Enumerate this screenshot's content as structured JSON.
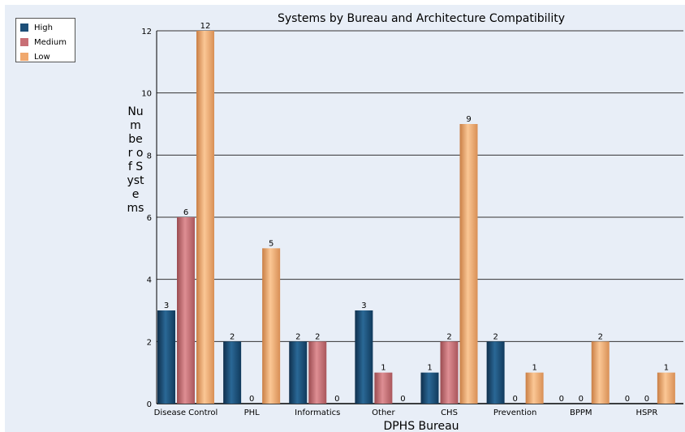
{
  "chart_data": {
    "type": "bar",
    "title": "Systems by Bureau and Architecture Compatibility",
    "xlabel": "DPHS Bureau",
    "ylabel": "Number of Systems",
    "ylim": [
      0,
      12
    ],
    "yticks": [
      0,
      2,
      4,
      6,
      8,
      10,
      12
    ],
    "grid": true,
    "legend_position": "top-left",
    "categories": [
      "Disease Control",
      "PHL",
      "Informatics",
      "Other",
      "CHS",
      "Prevention",
      "BPPM",
      "HSPR"
    ],
    "series": [
      {
        "name": "High",
        "color": "#1d4f78",
        "values": [
          3,
          2,
          2,
          3,
          1,
          2,
          0,
          0
        ]
      },
      {
        "name": "Medium",
        "color": "#c86f75",
        "values": [
          6,
          0,
          2,
          1,
          2,
          0,
          0,
          0
        ]
      },
      {
        "name": "Low",
        "color": "#f0a86e",
        "values": [
          12,
          5,
          0,
          0,
          9,
          1,
          2,
          1
        ]
      }
    ]
  }
}
